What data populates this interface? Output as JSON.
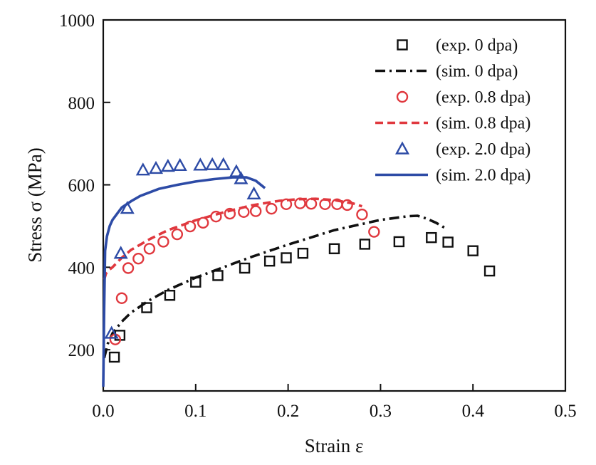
{
  "chart_data": {
    "type": "scatter",
    "title": "",
    "xlabel": "Strain ε",
    "ylabel": "Stress σ (MPa)",
    "xlim": [
      0.0,
      0.5
    ],
    "ylim": [
      100,
      1000
    ],
    "xticks": [
      "0.0",
      "0.1",
      "0.2",
      "0.3",
      "0.4",
      "0.5"
    ],
    "yticks": [
      "200",
      "400",
      "600",
      "800",
      "1000"
    ],
    "grid": false,
    "legend_position": "top-right",
    "series": [
      {
        "name": "(exp. 0 dpa)",
        "style": "marker",
        "marker": "square",
        "color": "#111111",
        "x": [
          0.012,
          0.018,
          0.047,
          0.072,
          0.1,
          0.124,
          0.153,
          0.18,
          0.198,
          0.216,
          0.25,
          0.283,
          0.32,
          0.355,
          0.373,
          0.4,
          0.418
        ],
        "y": [
          182,
          235,
          302,
          332,
          364,
          380,
          398,
          415,
          423,
          434,
          445,
          456,
          462,
          472,
          461,
          440,
          391
        ]
      },
      {
        "name": "(sim. 0 dpa)",
        "style": "line",
        "dash": "dashdot",
        "color": "#111111",
        "x": [
          0.001,
          0.005,
          0.01,
          0.02,
          0.03,
          0.05,
          0.07,
          0.1,
          0.13,
          0.16,
          0.2,
          0.25,
          0.3,
          0.33,
          0.34,
          0.35,
          0.36,
          0.37
        ],
        "y": [
          180,
          215,
          240,
          268,
          290,
          320,
          345,
          375,
          400,
          425,
          455,
          490,
          515,
          524,
          525,
          518,
          508,
          495
        ]
      },
      {
        "name": "(exp. 0.8 dpa)",
        "style": "marker",
        "marker": "circle",
        "color": "#e0383e",
        "x": [
          0.013,
          0.02,
          0.027,
          0.038,
          0.05,
          0.065,
          0.08,
          0.094,
          0.108,
          0.122,
          0.137,
          0.152,
          0.165,
          0.182,
          0.198,
          0.213,
          0.225,
          0.24,
          0.253,
          0.264,
          0.28,
          0.293
        ],
        "y": [
          225,
          325,
          398,
          421,
          445,
          462,
          480,
          499,
          508,
          523,
          530,
          534,
          536,
          542,
          553,
          555,
          554,
          553,
          553,
          551,
          528,
          486
        ]
      },
      {
        "name": "(sim. 0.8 dpa)",
        "style": "line",
        "dash": "dashed",
        "color": "#e0383e",
        "x": [
          0.001,
          0.003,
          0.006,
          0.01,
          0.02,
          0.03,
          0.05,
          0.07,
          0.1,
          0.13,
          0.16,
          0.19,
          0.21,
          0.23,
          0.25,
          0.27,
          0.28
        ],
        "y": [
          370,
          385,
          393,
          400,
          423,
          442,
          468,
          490,
          514,
          533,
          550,
          561,
          565,
          566,
          563,
          555,
          548
        ]
      },
      {
        "name": "(exp. 2.0 dpa)",
        "style": "marker",
        "marker": "triangle",
        "color": "#2d4ba6",
        "x": [
          0.009,
          0.019,
          0.026,
          0.043,
          0.057,
          0.07,
          0.083,
          0.105,
          0.118,
          0.13,
          0.144,
          0.149,
          0.163
        ],
        "y": [
          240,
          434,
          543,
          636,
          640,
          645,
          647,
          648,
          649,
          649,
          632,
          615,
          578
        ]
      },
      {
        "name": "(sim. 2.0 dpa)",
        "style": "line",
        "dash": "solid",
        "color": "#2d4ba6",
        "x": [
          0.0,
          0.001,
          0.002,
          0.004,
          0.007,
          0.01,
          0.015,
          0.02,
          0.03,
          0.04,
          0.06,
          0.08,
          0.1,
          0.12,
          0.14,
          0.155,
          0.165,
          0.175
        ],
        "y": [
          110,
          300,
          440,
          475,
          500,
          515,
          530,
          545,
          560,
          573,
          590,
          600,
          608,
          614,
          618,
          618,
          610,
          592
        ]
      }
    ]
  }
}
